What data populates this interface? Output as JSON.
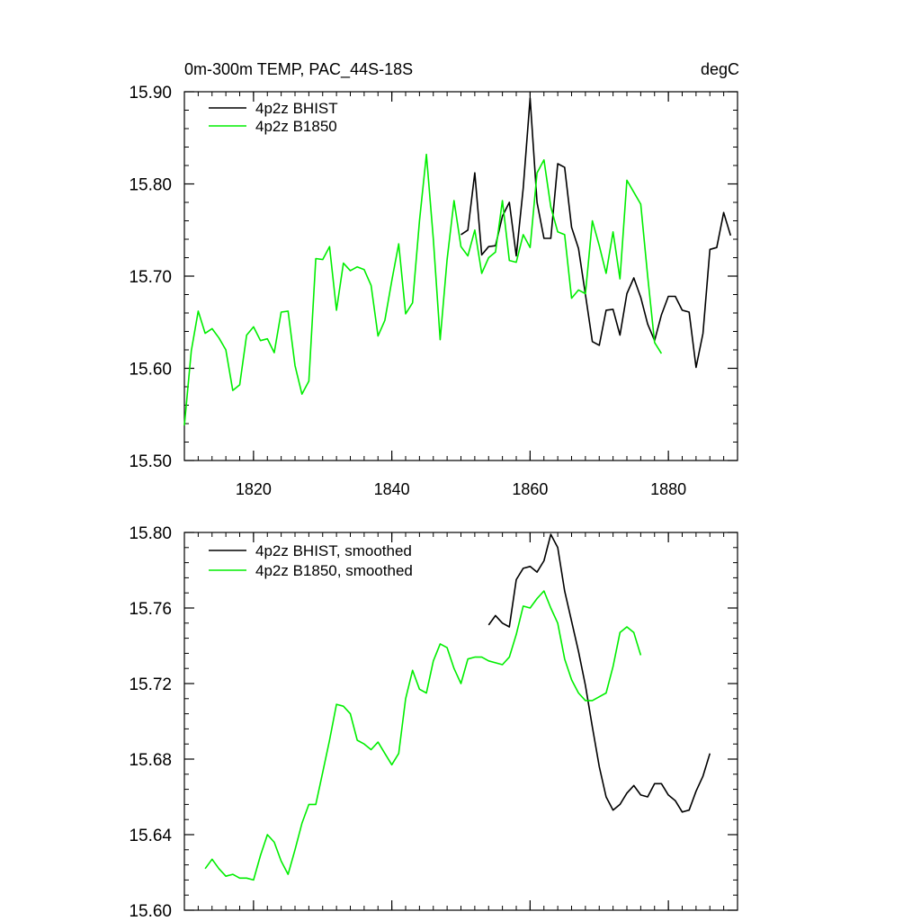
{
  "chart_data": [
    {
      "type": "line",
      "title": "0m-300m TEMP, PAC_44S-18S",
      "units": "degC",
      "xlabel": "",
      "ylabel": "",
      "xlim": [
        1810,
        1890
      ],
      "ylim": [
        15.5,
        15.9
      ],
      "x_ticks": [
        1820,
        1840,
        1860,
        1880
      ],
      "x_tick_labels": [
        "1820",
        "1840",
        "1860",
        "1880"
      ],
      "y_ticks": [
        15.5,
        15.6,
        15.7,
        15.8,
        15.9
      ],
      "y_tick_labels": [
        "15.50",
        "15.60",
        "15.70",
        "15.80",
        "15.90"
      ],
      "grid": false,
      "legend_position": "top-left",
      "series": [
        {
          "name": "4p2z BHIST",
          "color": "#000000",
          "x": [
            1850,
            1851,
            1852,
            1853,
            1854,
            1855,
            1856,
            1857,
            1858,
            1859,
            1860,
            1861,
            1862,
            1863,
            1864,
            1865,
            1866,
            1867,
            1868,
            1869,
            1870,
            1871,
            1872,
            1873,
            1874,
            1875,
            1876,
            1877,
            1878,
            1879,
            1880,
            1881,
            1882,
            1883,
            1884,
            1885,
            1886,
            1887,
            1888,
            1889
          ],
          "y": [
            15.745,
            15.75,
            15.812,
            15.723,
            15.732,
            15.733,
            15.765,
            15.78,
            15.722,
            15.795,
            15.893,
            15.78,
            15.741,
            15.741,
            15.822,
            15.818,
            15.753,
            15.73,
            15.68,
            15.629,
            15.625,
            15.663,
            15.664,
            15.636,
            15.681,
            15.698,
            15.677,
            15.648,
            15.63,
            15.658,
            15.678,
            15.678,
            15.663,
            15.661,
            15.601,
            15.638,
            15.729,
            15.731,
            15.769,
            15.744
          ]
        },
        {
          "name": "4p2z B1850",
          "color": "#00ee00",
          "x": [
            1810,
            1811,
            1812,
            1813,
            1814,
            1815,
            1816,
            1817,
            1818,
            1819,
            1820,
            1821,
            1822,
            1823,
            1824,
            1825,
            1826,
            1827,
            1828,
            1829,
            1830,
            1831,
            1832,
            1833,
            1834,
            1835,
            1836,
            1837,
            1838,
            1839,
            1840,
            1841,
            1842,
            1843,
            1844,
            1845,
            1846,
            1847,
            1848,
            1849,
            1850,
            1851,
            1852,
            1853,
            1854,
            1855,
            1856,
            1857,
            1858,
            1859,
            1860,
            1861,
            1862,
            1863,
            1864,
            1865,
            1866,
            1867,
            1868,
            1869,
            1870,
            1871,
            1872,
            1873,
            1874,
            1875,
            1876,
            1877,
            1878,
            1879
          ],
          "y": [
            15.538,
            15.619,
            15.662,
            15.638,
            15.643,
            15.633,
            15.62,
            15.576,
            15.582,
            15.636,
            15.645,
            15.63,
            15.632,
            15.617,
            15.661,
            15.662,
            15.603,
            15.572,
            15.586,
            15.719,
            15.718,
            15.732,
            15.663,
            15.714,
            15.706,
            15.71,
            15.707,
            15.69,
            15.635,
            15.652,
            15.695,
            15.735,
            15.659,
            15.671,
            15.76,
            15.832,
            15.74,
            15.631,
            15.718,
            15.782,
            15.732,
            15.722,
            15.75,
            15.703,
            15.72,
            15.726,
            15.782,
            15.717,
            15.715,
            15.745,
            15.731,
            15.812,
            15.826,
            15.775,
            15.748,
            15.745,
            15.676,
            15.685,
            15.681,
            15.76,
            15.733,
            15.703,
            15.748,
            15.697,
            15.804,
            15.791,
            15.778,
            15.7,
            15.628,
            15.616
          ]
        }
      ]
    },
    {
      "type": "line",
      "title": "",
      "xlabel": "",
      "ylabel": "",
      "xlim": [
        1810,
        1890
      ],
      "ylim": [
        15.6,
        15.8
      ],
      "x_ticks": [
        1820,
        1840,
        1860,
        1880
      ],
      "y_ticks": [
        15.6,
        15.64,
        15.68,
        15.72,
        15.76,
        15.8
      ],
      "y_tick_labels": [
        "15.60",
        "15.64",
        "15.68",
        "15.72",
        "15.76",
        "15.80"
      ],
      "grid": false,
      "legend_position": "top-left",
      "series": [
        {
          "name": "4p2z BHIST, smoothed",
          "color": "#000000",
          "x": [
            1854,
            1855,
            1856,
            1857,
            1858,
            1859,
            1860,
            1861,
            1862,
            1863,
            1864,
            1865,
            1866,
            1867,
            1868,
            1869,
            1870,
            1871,
            1872,
            1873,
            1874,
            1875,
            1876,
            1877,
            1878,
            1879,
            1880,
            1881,
            1882,
            1883,
            1884,
            1885,
            1886
          ],
          "y": [
            15.751,
            15.756,
            15.752,
            15.75,
            15.775,
            15.781,
            15.782,
            15.779,
            15.785,
            15.799,
            15.792,
            15.769,
            15.753,
            15.737,
            15.719,
            15.697,
            15.676,
            15.66,
            15.653,
            15.656,
            15.662,
            15.666,
            15.661,
            15.66,
            15.667,
            15.667,
            15.661,
            15.658,
            15.652,
            15.653,
            15.663,
            15.671,
            15.683
          ]
        },
        {
          "name": "4p2z B1850, smoothed",
          "color": "#00ee00",
          "x": [
            1813,
            1814,
            1815,
            1816,
            1817,
            1818,
            1819,
            1820,
            1821,
            1822,
            1823,
            1824,
            1825,
            1826,
            1827,
            1828,
            1829,
            1830,
            1831,
            1832,
            1833,
            1834,
            1835,
            1836,
            1837,
            1838,
            1839,
            1840,
            1841,
            1842,
            1843,
            1844,
            1845,
            1846,
            1847,
            1848,
            1849,
            1850,
            1851,
            1852,
            1853,
            1854,
            1855,
            1856,
            1857,
            1858,
            1859,
            1860,
            1861,
            1862,
            1863,
            1864,
            1865,
            1866,
            1867,
            1868,
            1869,
            1870,
            1871,
            1872,
            1873,
            1874,
            1875,
            1876
          ],
          "y": [
            15.622,
            15.627,
            15.622,
            15.618,
            15.619,
            15.617,
            15.617,
            15.616,
            15.629,
            15.64,
            15.636,
            15.626,
            15.619,
            15.632,
            15.646,
            15.656,
            15.656,
            15.673,
            15.69,
            15.709,
            15.708,
            15.704,
            15.69,
            15.688,
            15.685,
            15.689,
            15.683,
            15.677,
            15.683,
            15.712,
            15.727,
            15.717,
            15.715,
            15.732,
            15.741,
            15.739,
            15.728,
            15.72,
            15.733,
            15.734,
            15.734,
            15.732,
            15.731,
            15.73,
            15.734,
            15.746,
            15.761,
            15.76,
            15.765,
            15.769,
            15.76,
            15.752,
            15.733,
            15.722,
            15.715,
            15.711,
            15.711,
            15.713,
            15.715,
            15.729,
            15.747,
            15.75,
            15.747,
            15.735
          ]
        }
      ]
    }
  ]
}
